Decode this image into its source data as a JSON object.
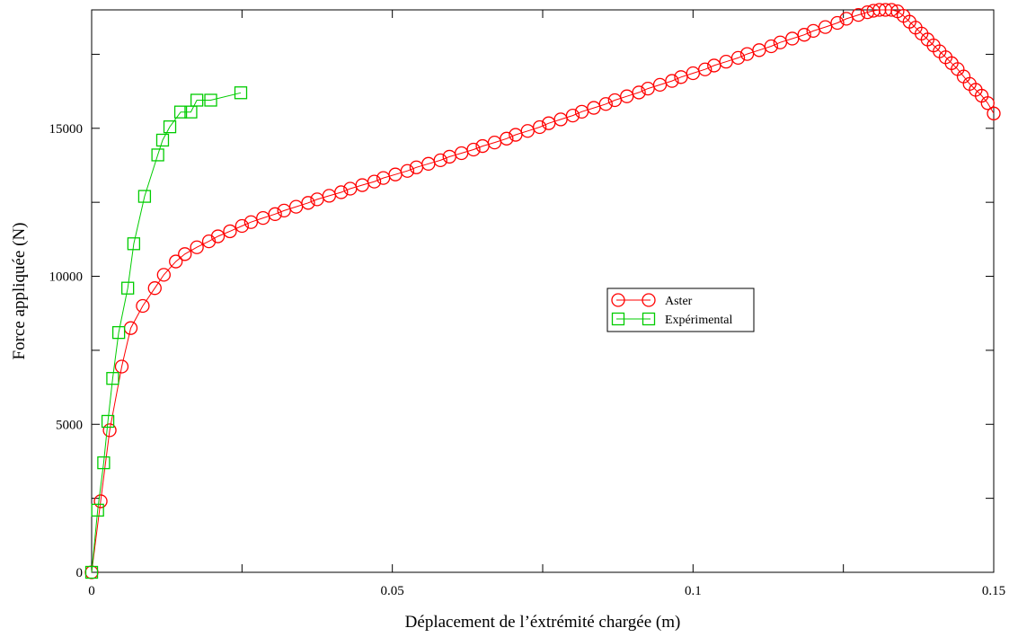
{
  "chart_data": {
    "type": "line",
    "title": "",
    "xlabel": "Déplacement de l’éxtrémité chargée (m)",
    "ylabel": "Force appliquée (N)",
    "xlim": [
      0,
      0.15
    ],
    "ylim": [
      0,
      19000
    ],
    "x_ticks": [
      0,
      0.05,
      0.1,
      0.15
    ],
    "x_tick_labels": [
      "0",
      "0.05",
      "0.1",
      "0.15"
    ],
    "y_ticks": [
      0,
      5000,
      10000,
      15000
    ],
    "y_tick_labels": [
      "0",
      "5000",
      "10000",
      "15000"
    ],
    "grid": false,
    "legend_position": "center-right",
    "series": [
      {
        "name": "Aster",
        "color": "#ff0000",
        "marker": "circle",
        "x": [
          0,
          0.0015,
          0.003,
          0.005,
          0.0065,
          0.0085,
          0.0105,
          0.012,
          0.014,
          0.0155,
          0.0175,
          0.0195,
          0.021,
          0.023,
          0.025,
          0.0265,
          0.0285,
          0.0305,
          0.032,
          0.034,
          0.036,
          0.0375,
          0.0395,
          0.0415,
          0.043,
          0.045,
          0.047,
          0.0485,
          0.0505,
          0.0525,
          0.054,
          0.056,
          0.058,
          0.0595,
          0.0615,
          0.0635,
          0.065,
          0.067,
          0.069,
          0.0705,
          0.0725,
          0.0745,
          0.076,
          0.078,
          0.08,
          0.0815,
          0.0835,
          0.0855,
          0.087,
          0.089,
          0.091,
          0.0925,
          0.0945,
          0.0965,
          0.098,
          0.1,
          0.102,
          0.1035,
          0.1055,
          0.1075,
          0.109,
          0.111,
          0.113,
          0.1145,
          0.1165,
          0.1185,
          0.12,
          0.122,
          0.124,
          0.1255,
          0.1275,
          0.129,
          0.13,
          0.131,
          0.132,
          0.133,
          0.134,
          0.135,
          0.136,
          0.137,
          0.138,
          0.139,
          0.14,
          0.141,
          0.142,
          0.143,
          0.144,
          0.145,
          0.146,
          0.147,
          0.148,
          0.149,
          0.15
        ],
        "y": [
          0,
          2400,
          4800,
          6950,
          8250,
          9000,
          9600,
          10050,
          10500,
          10750,
          10980,
          11180,
          11350,
          11520,
          11700,
          11830,
          11970,
          12100,
          12220,
          12350,
          12480,
          12600,
          12720,
          12840,
          12960,
          13080,
          13200,
          13320,
          13440,
          13560,
          13680,
          13800,
          13920,
          14040,
          14160,
          14280,
          14400,
          14520,
          14650,
          14780,
          14910,
          15040,
          15170,
          15300,
          15430,
          15560,
          15690,
          15820,
          15950,
          16080,
          16210,
          16340,
          16470,
          16600,
          16730,
          16860,
          16990,
          17120,
          17250,
          17380,
          17510,
          17640,
          17770,
          17900,
          18030,
          18160,
          18290,
          18420,
          18560,
          18700,
          18830,
          18920,
          18970,
          19000,
          19000,
          19000,
          18950,
          18800,
          18600,
          18400,
          18200,
          18000,
          17800,
          17600,
          17400,
          17200,
          17000,
          16750,
          16500,
          16300,
          16100,
          15850,
          15500
        ]
      },
      {
        "name": "Expérimental",
        "color": "#00cc00",
        "marker": "square",
        "x": [
          0,
          0.001,
          0.002,
          0.0027,
          0.0035,
          0.0045,
          0.006,
          0.007,
          0.0088,
          0.011,
          0.0118,
          0.013,
          0.0148,
          0.0165,
          0.0175,
          0.0198,
          0.0248
        ],
        "y": [
          0,
          2100,
          3700,
          5100,
          6550,
          8100,
          9600,
          11100,
          12700,
          14100,
          14600,
          15050,
          15550,
          15550,
          15950,
          15950,
          16200
        ]
      }
    ]
  }
}
